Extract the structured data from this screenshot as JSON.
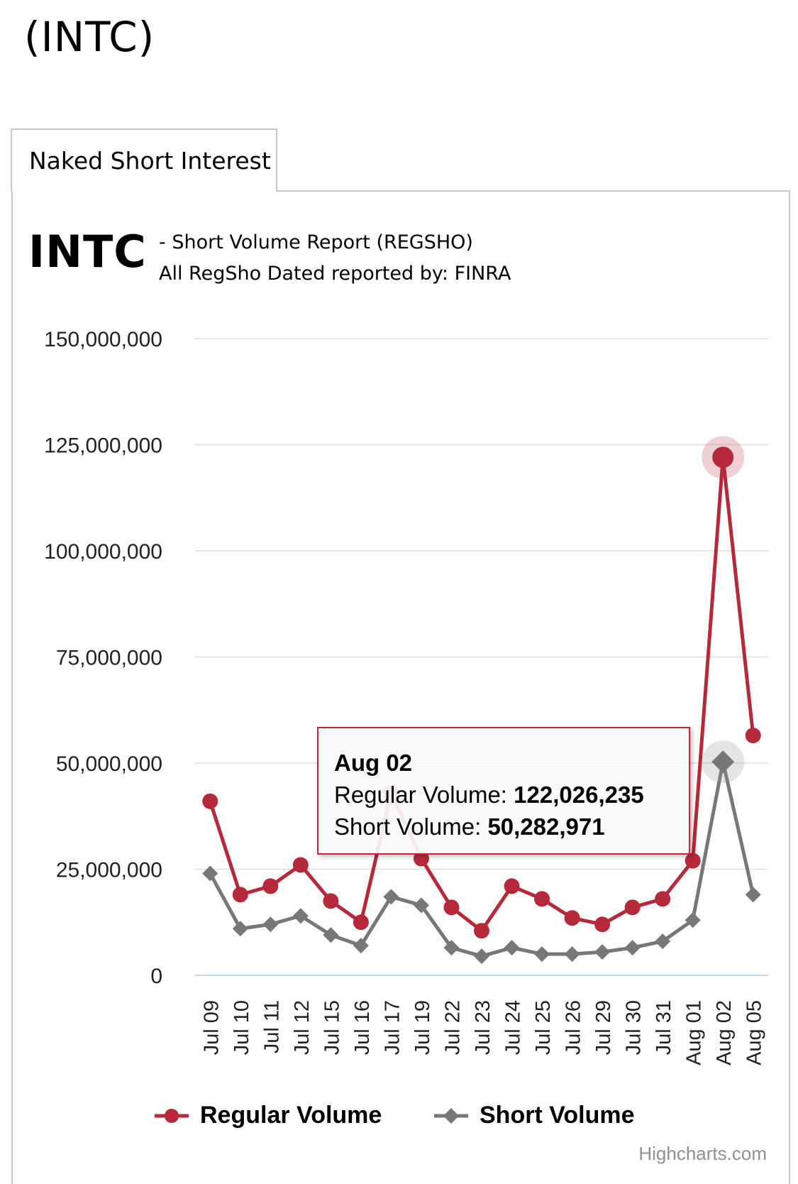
{
  "page": {
    "title": "(INTC)"
  },
  "tab": {
    "label": "Naked Short Interest"
  },
  "header": {
    "symbol": "INTC",
    "subtitle_line1": "- Short Volume Report  (REGSHO)",
    "subtitle_line2": "All RegSho Dated reported by: FINRA"
  },
  "tooltip": {
    "date": "Aug 02",
    "regular_label": "Regular Volume:",
    "regular_value": "122,026,235",
    "short_label": "Short Volume:",
    "short_value": "50,282,971"
  },
  "credits": "Highcharts.com",
  "chart_data": {
    "type": "line",
    "title": "",
    "xlabel": "",
    "ylabel": "",
    "categories": [
      "Jul 09",
      "Jul 10",
      "Jul 11",
      "Jul 12",
      "Jul 15",
      "Jul 16",
      "Jul 17",
      "Jul 19",
      "Jul 22",
      "Jul 23",
      "Jul 24",
      "Jul 25",
      "Jul 26",
      "Jul 29",
      "Jul 30",
      "Jul 31",
      "Aug 01",
      "Aug 02",
      "Aug 05"
    ],
    "ylim": [
      0,
      150000000
    ],
    "yticks": [
      0,
      25000000,
      50000000,
      75000000,
      100000000,
      125000000,
      150000000
    ],
    "ytick_labels": [
      "0",
      "25,000,000",
      "50,000,000",
      "75,000,000",
      "100,000,000",
      "125,000,000",
      "150,000,000"
    ],
    "grid": true,
    "legend_position": "bottom-center",
    "highlight_category": "Aug 02",
    "series": [
      {
        "name": "Regular Volume",
        "color": "#b5293a",
        "marker": "circle",
        "values": [
          41000000,
          19000000,
          21000000,
          26000000,
          17500000,
          12500000,
          43000000,
          27500000,
          16000000,
          10500000,
          21000000,
          18000000,
          13500000,
          12000000,
          16000000,
          18000000,
          27000000,
          122026235,
          56500000
        ]
      },
      {
        "name": "Short Volume",
        "color": "#777777",
        "marker": "diamond",
        "values": [
          24000000,
          11000000,
          12000000,
          14000000,
          9500000,
          7000000,
          18500000,
          16500000,
          6500000,
          4500000,
          6500000,
          5000000,
          5000000,
          5500000,
          6500000,
          8000000,
          13000000,
          50282971,
          19000000
        ]
      }
    ]
  }
}
